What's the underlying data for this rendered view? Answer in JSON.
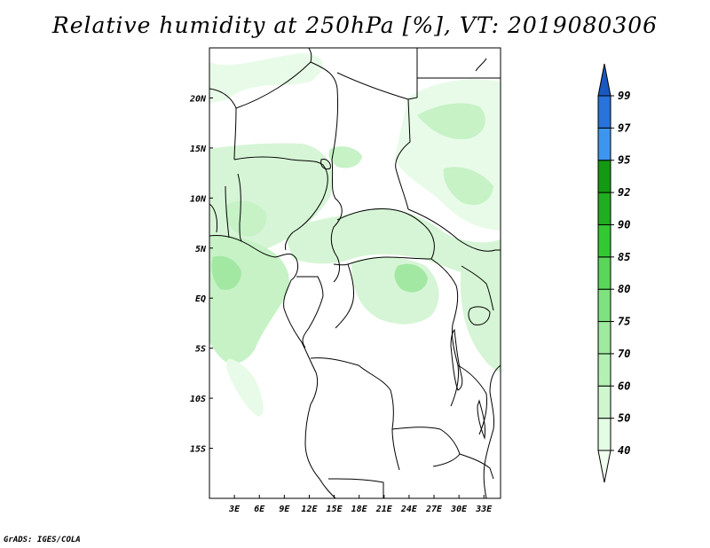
{
  "title": "Relative humidity at 250hPa [%], VT: 2019080306",
  "credit": "GrADS: IGES/COLA",
  "map": {
    "lon_range": [
      0,
      35
    ],
    "lat_range": [
      -20,
      25
    ],
    "lon_ticks": [
      3,
      6,
      9,
      12,
      15,
      18,
      21,
      24,
      27,
      30,
      33
    ],
    "lon_tick_labels": [
      "3E",
      "6E",
      "9E",
      "12E",
      "15E",
      "18E",
      "21E",
      "24E",
      "27E",
      "30E",
      "33E"
    ],
    "lat_ticks": [
      20,
      15,
      10,
      5,
      0,
      -5,
      -10,
      -15
    ],
    "lat_tick_labels": [
      "20N",
      "15N",
      "10N",
      "5N",
      "EQ",
      "5S",
      "10S",
      "15S"
    ]
  },
  "colorbar": {
    "levels": [
      "40",
      "50",
      "60",
      "70",
      "75",
      "80",
      "85",
      "90",
      "92",
      "95",
      "97",
      "99"
    ],
    "colors": [
      "#f0fff0",
      "#e4fbe4",
      "#d0f6d0",
      "#b4f0b4",
      "#9eea9e",
      "#7ee27e",
      "#5ad65a",
      "#32c832",
      "#1fae1f",
      "#139a13",
      "#3c96f0",
      "#2873dc",
      "#1a58c0"
    ]
  },
  "colors": {
    "land_outline": "#000000",
    "humidity_light": "#e8fbe8",
    "humidity_mid": "#c6f2c6",
    "humidity_high": "#a2e8a2"
  }
}
